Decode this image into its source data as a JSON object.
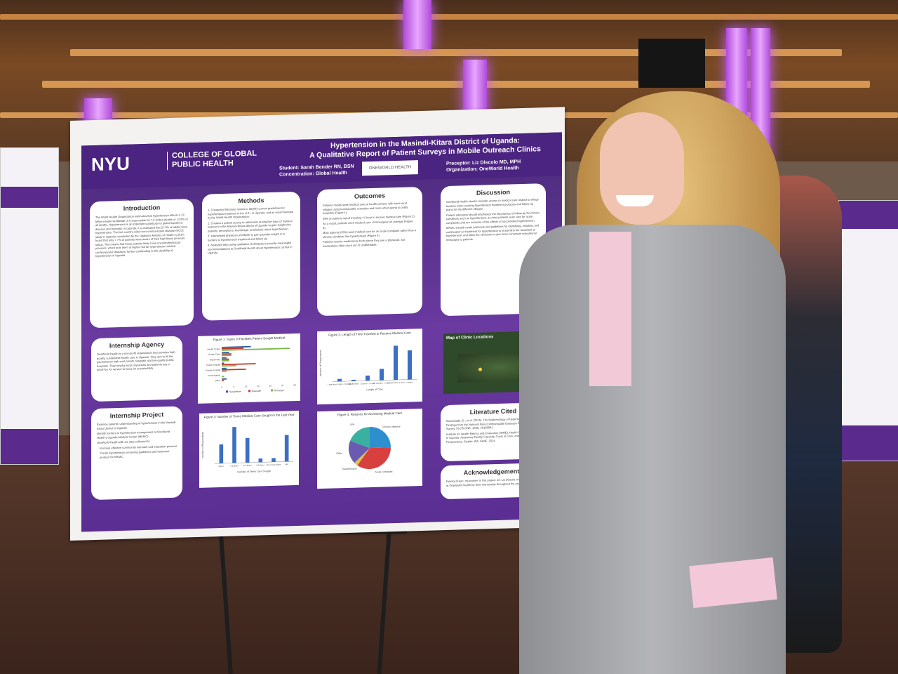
{
  "poster": {
    "org_logo": "NYU",
    "college_line1": "COLLEGE OF GLOBAL",
    "college_line2": "PUBLIC HEALTH",
    "title_line1": "Hypertension in the Masindi-Kitara District of Uganda:",
    "title_line2": "A Qualitative Report of Patient Surveys in Mobile Outreach Clinics",
    "student": "Student: Sarah Bender RN, BSN",
    "concentration": "Concentration: Global Health",
    "partner_logo": "ONEWORLD HEALTH",
    "preceptor": "Preceptor: Liz Discolo MD, MPH",
    "organization": "Organization: OneWorld Health",
    "sections": {
      "introduction": {
        "heading": "Introduction",
        "text": "The World Health Organization estimates that hypertension effects 1.13 billion people worldwide; it is responsible for 7.5 million deaths or 12.8% of all deaths. Hypertension is an important contributor to global burden of disease and mortality. In Uganda, it is estimated that 27.3% of adults have hypertension. The first country-wide non-communicable disease (NCD) study in Uganda, conducted by the Uganda's Ministry of Health in 2014, found that only 7.7% of patients were aware of their high blood pressure status. This means that these patients likely have uncontrolled blood pressure, which puts them at higher risk for hypertension-related cardiovascular diseases, further contributing to the disability of hypertension in Uganda."
      },
      "methods": {
        "heading": "Methods",
        "items": [
          "1. Conducted literature review to identify current guidelines for hypertension treatment in the U.S., in Uganda, and as recommended by the World Health Organization.",
          "2. Created a patient survey to administer during five days of medical outreach in the Masindi-Kitara district of Uganda to gain insight into patients' perceptions, knowledge, and beliefs about hypertension.",
          "3. Interviewed physician at MKMC to gain provider insight in to barriers to hypertension treatment and follow up.",
          "4. Analyzed data using qualitative techniques to provide meaningful recommendations to OneWorld Health about hypertension control in Uganda"
        ]
      },
      "outcomes": {
        "heading": "Outcomes",
        "items": [
          "Patients mostly seek medical care at health centers, with more rural villages using homeopathic remedies and more urban going to public hospitals (Figure 1).",
          "39% of patients report traveling >1 hour to receive medical care (Figure 2).",
          "As a result, patients seek medical care <5 times/year on average (Figure 3).",
          "Most patients (35%) seek medical care for an acute complaint rather than a chronic condition, like hypertension (Figure 4).",
          "Patients receive medications from where they see a physician, but medications often stock out or unaffordable."
        ]
      },
      "discussion": {
        "heading": "Discussion",
        "items": [
          "OneWorld Health should consider access to medical care related to village location when creating hypertension treatment protocols and follow-up plans for the different villages.",
          "Patient education should emphasize the importance of follow-up for chronic conditions such as hypertension, as most patients seek care for acute complaints and are unaware of the effects of uncontrolled hypertension.",
          "MKMC should create protocols and guidelines for identifying, initiating, and continuation of treatment for hypertension to streamline the treatment of hypertension and allow the clinicians to give more consistent educational messages to patients."
        ]
      },
      "internship_agency": {
        "heading": "Internship Agency",
        "text": "OneWorld Health is a non-profit organization that provides high-quality, sustainable health care in Uganda. They aim to fill the gap between high-cost private hospitals and low-quality public hospitals. They employ local physicians and patients pay a small fee for service to focus on sustainability."
      },
      "internship_project": {
        "heading": "Internship Project",
        "items": [
          "Examine patients' understanding of hypertension in the Masindi-Kitara district of Uganda",
          "Identify barriers to hypertension management at OneWorld Health's Uganda Medical Center (MKMC)",
          "OneWorld Health will use data collected to:",
          "Increase effective community outreach and education protocol",
          "Create hypertension screening guidelines and treatment protocol for MKMC"
        ]
      },
      "map": {
        "heading": "Map of Clinic Locations"
      },
      "literature": {
        "heading": "Literature Cited",
        "items": [
          "Guwatudde, D., et al. (2015). The Epidemiology of Hypertension in Uganda: Findings from the National Non-Communicable Diseases Risk Factor Survey. PLOS ONE, 10(9), e0138991.",
          "Institute for Health Metrics and Evaluation (IHME). Health Service Provision in Uganda: Assessing Facility Capacity, Costs of Care, and Patient Perspectives. Seattle, WA: IHME, 2014."
        ]
      },
      "acknowledgements": {
        "heading": "Acknowledgements",
        "text": "Felicity Duran, my partner in this project. Dr. Liz Discolo and Dr. Jenny Lee at OneWorld Health for their mentorship throughout the process."
      }
    }
  },
  "chart_data": [
    {
      "type": "bar",
      "title": "Figure 1: Types of Facilities Patient Sought Medical",
      "orientation": "horizontal",
      "categories": [
        "Health Center",
        "Private Clinic",
        "Dispensary",
        "Public Hospital",
        "Private Hospital",
        "Homeopathic",
        "Other"
      ],
      "series": [
        {
          "name": "Kasalenne",
          "color": "#2e5d9e",
          "values": [
            12,
            3,
            2,
            1,
            2,
            0,
            2
          ]
        },
        {
          "name": "Bweyale",
          "color": "#c0392b",
          "values": [
            9,
            4,
            3,
            14,
            10,
            0,
            1
          ]
        },
        {
          "name": "Kimanya",
          "color": "#7ab648",
          "values": [
            28,
            4,
            3,
            6,
            2,
            1,
            0
          ]
        }
      ],
      "xticks": [
        "0",
        "5",
        "10",
        "15",
        "20",
        "25",
        "30"
      ],
      "xlim": [
        0,
        30
      ]
    },
    {
      "type": "bar",
      "title": "Figure 2: Length of Time Traveled to Receive Medical Care",
      "categories": [
        "Less than 5 mins - 15 mins",
        "16-30 mins",
        "31 mins - 1 hour",
        "31 minutes - 1 hour",
        "1 - More than 1 hour",
        "Unsure"
      ],
      "values": [
        2,
        1,
        4,
        9,
        27,
        23
      ],
      "xlabel": "Length of Time",
      "ylabel": "Number of Respondents",
      "ylim": [
        0,
        30
      ]
    },
    {
      "type": "bar",
      "title": "Figure 3: Number of Times Medical Care Sought in the Last Year",
      "categories": [
        "Never",
        "1-2 times",
        "3-4 times",
        "5-6 times",
        "10 or more times",
        "N/A"
      ],
      "values": [
        10,
        19,
        13,
        2,
        2,
        14
      ],
      "xlabel": "Number of Times Care Sought",
      "ylabel": "Number of Respondents",
      "ylim": [
        0,
        20
      ]
    },
    {
      "type": "pie",
      "title": "Figure 4: Reasons for Accessing Medical Care",
      "labels": [
        "Chronic disease",
        "Acute complaint",
        "Trauma/Injury",
        "Other",
        "N/A"
      ],
      "values": [
        25,
        35,
        3,
        18,
        19
      ],
      "colors": [
        "#2e8fcf",
        "#d84040",
        "#e0c040",
        "#6a5ab0",
        "#3ab0a0"
      ]
    }
  ]
}
